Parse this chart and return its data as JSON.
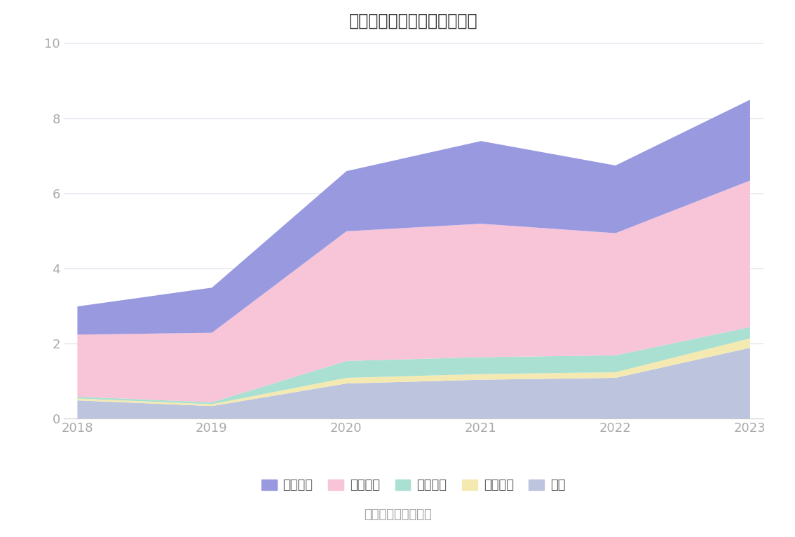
{
  "title": "历年主要负债堆积图（亿元）",
  "years": [
    2018,
    2019,
    2020,
    2021,
    2022,
    2023
  ],
  "series": {
    "其它": [
      0.5,
      0.35,
      0.95,
      1.05,
      1.1,
      1.9
    ],
    "租赁负债": [
      0.05,
      0.05,
      0.15,
      0.15,
      0.15,
      0.25
    ],
    "合同负债": [
      0.05,
      0.05,
      0.45,
      0.45,
      0.45,
      0.3
    ],
    "应付账款": [
      1.65,
      1.85,
      3.45,
      3.55,
      3.25,
      3.9
    ],
    "短期借款": [
      0.75,
      1.2,
      1.6,
      2.2,
      1.8,
      2.15
    ]
  },
  "colors": {
    "其它": "#bcc4de",
    "租赁负债": "#f5e9b2",
    "合同负债": "#aae0d2",
    "应付账款": "#f7c4d8",
    "短期借款": "#9999e0"
  },
  "ylim": [
    0,
    10
  ],
  "yticks": [
    0,
    2,
    4,
    6,
    8,
    10
  ],
  "source": "数据来源：恒生聚源",
  "background_color": "#ffffff",
  "grid_color": "#d8dce8",
  "axis_color": "#cccccc",
  "tick_color": "#aaaaaa",
  "title_color": "#333333",
  "legend_label_color": "#555555",
  "source_color": "#999999"
}
